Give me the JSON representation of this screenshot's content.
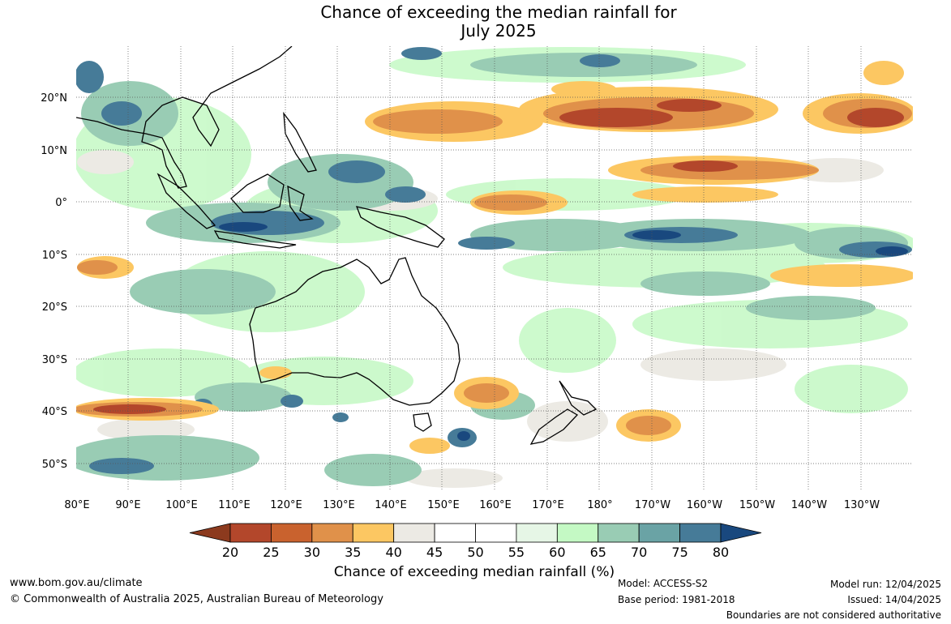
{
  "title": {
    "line1": "Chance of exceeding the median rainfall for",
    "line2": "July 2025"
  },
  "map": {
    "lat_labels": [
      "20°N",
      "10°N",
      "0°",
      "10°S",
      "20°S",
      "30°S",
      "40°S",
      "50°S"
    ],
    "lon_labels": [
      "80°E",
      "90°E",
      "100°E",
      "110°E",
      "120°E",
      "130°E",
      "140°E",
      "150°E",
      "160°E",
      "170°E",
      "180°",
      "170°W",
      "160°W",
      "150°W",
      "140°W",
      "130°W"
    ],
    "background_color": "#ffffff",
    "coast_color": "#000000",
    "grid_color": "#555555"
  },
  "colorbar": {
    "title": "Chance of exceeding median rainfall (%)",
    "ticks": [
      "20",
      "25",
      "30",
      "35",
      "40",
      "45",
      "50",
      "55",
      "60",
      "65",
      "70",
      "75",
      "80"
    ],
    "colors": [
      "#8c3a1e",
      "#b3472b",
      "#c9622e",
      "#e0914a",
      "#fcc762",
      "#eceae4",
      "#ffffff",
      "#ffffff",
      "#e6f6e6",
      "#c4f9c4",
      "#99ccb4",
      "#6aa3a5",
      "#467b98",
      "#19487e"
    ]
  },
  "footer": {
    "website": "www.bom.gov.au/climate",
    "copyright": "© Commonwealth of Australia 2025, Australian Bureau of Meteorology",
    "model": "Model: ACCESS-S2",
    "base_period": "Base period: 1981-2018",
    "model_run": "Model run: 12/04/2025",
    "issued": "Issued: 14/04/2025",
    "disclaimer": "Boundaries are not considered authoritative"
  }
}
